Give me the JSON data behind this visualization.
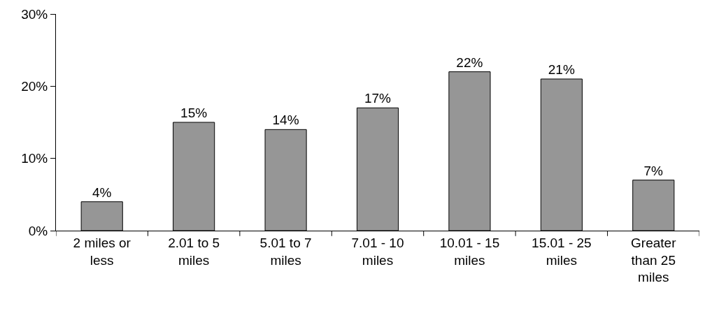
{
  "chart_data": {
    "type": "bar",
    "categories": [
      "2 miles or less",
      "2.01 to 5 miles",
      "5.01 to 7 miles",
      "7.01 - 10 miles",
      "10.01 - 15 miles",
      "15.01 - 25 miles",
      "Greater than 25 miles"
    ],
    "values": [
      4,
      15,
      14,
      17,
      22,
      21,
      7
    ],
    "value_labels": [
      "4%",
      "15%",
      "14%",
      "17%",
      "22%",
      "21%",
      "7%"
    ],
    "color": "#969696",
    "ylim": [
      0,
      30
    ],
    "yticks": [
      {
        "value": 0,
        "label": "0%"
      },
      {
        "value": 10,
        "label": "10%"
      },
      {
        "value": 20,
        "label": "20%"
      },
      {
        "value": 30,
        "label": "30%"
      }
    ]
  }
}
